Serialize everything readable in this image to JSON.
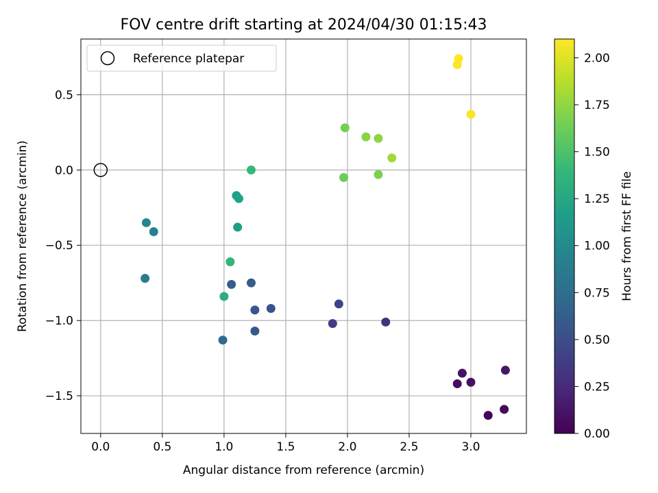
{
  "chart_data": {
    "type": "scatter",
    "title": "FOV centre drift starting at 2024/04/30 01:15:43",
    "xlabel": "Angular distance from reference (arcmin)",
    "ylabel": "Rotation from reference (arcmin)",
    "xlim": [
      -0.16,
      3.45
    ],
    "ylim": [
      -1.75,
      0.87
    ],
    "xticks": [
      0.0,
      0.5,
      1.0,
      1.5,
      2.0,
      2.5,
      3.0
    ],
    "xtick_labels": [
      "0.0",
      "0.5",
      "1.0",
      "1.5",
      "2.0",
      "2.5",
      "3.0"
    ],
    "yticks": [
      -1.5,
      -1.0,
      -0.5,
      0.0,
      0.5
    ],
    "ytick_labels": [
      "−1.5",
      "−1.0",
      "−0.5",
      "0.0",
      "0.5"
    ],
    "grid": true,
    "legend": {
      "position": "top-left",
      "entries": [
        "Reference platepar"
      ]
    },
    "reference_point": {
      "x": 0.0,
      "y": 0.0
    },
    "colorbar": {
      "label": "Hours from first FF file",
      "range": [
        0.0,
        2.1
      ],
      "ticks": [
        0.0,
        0.25,
        0.5,
        0.75,
        1.0,
        1.25,
        1.5,
        1.75,
        2.0
      ],
      "tick_labels": [
        "0.00",
        "0.25",
        "0.50",
        "0.75",
        "1.00",
        "1.25",
        "1.50",
        "1.75",
        "2.00"
      ],
      "colormap": [
        "#440154",
        "#482878",
        "#3e4989",
        "#31688e",
        "#26828e",
        "#1f9e89",
        "#35b779",
        "#6ece58",
        "#b5de2b",
        "#fde725"
      ]
    },
    "series": [
      {
        "points": [
          {
            "x": 3.14,
            "y": -1.63,
            "hours": 0.02
          },
          {
            "x": 3.27,
            "y": -1.59,
            "hours": 0.04
          },
          {
            "x": 2.89,
            "y": -1.42,
            "hours": 0.07
          },
          {
            "x": 3.0,
            "y": -1.41,
            "hours": 0.09
          },
          {
            "x": 2.93,
            "y": -1.35,
            "hours": 0.11
          },
          {
            "x": 3.28,
            "y": -1.33,
            "hours": 0.13
          },
          {
            "x": 2.31,
            "y": -1.01,
            "hours": 0.3
          },
          {
            "x": 1.88,
            "y": -1.02,
            "hours": 0.38
          },
          {
            "x": 1.93,
            "y": -0.89,
            "hours": 0.42
          },
          {
            "x": 1.38,
            "y": -0.92,
            "hours": 0.55
          },
          {
            "x": 1.25,
            "y": -0.93,
            "hours": 0.57
          },
          {
            "x": 1.25,
            "y": -1.07,
            "hours": 0.58
          },
          {
            "x": 1.22,
            "y": -0.75,
            "hours": 0.6
          },
          {
            "x": 1.06,
            "y": -0.76,
            "hours": 0.62
          },
          {
            "x": 0.99,
            "y": -1.13,
            "hours": 0.72
          },
          {
            "x": 0.36,
            "y": -0.72,
            "hours": 0.88
          },
          {
            "x": 0.43,
            "y": -0.41,
            "hours": 0.93
          },
          {
            "x": 0.37,
            "y": -0.35,
            "hours": 0.97
          },
          {
            "x": 1.11,
            "y": -0.38,
            "hours": 1.16
          },
          {
            "x": 1.1,
            "y": -0.17,
            "hours": 1.18
          },
          {
            "x": 1.12,
            "y": -0.19,
            "hours": 1.2
          },
          {
            "x": 1.0,
            "y": -0.84,
            "hours": 1.3
          },
          {
            "x": 1.05,
            "y": -0.61,
            "hours": 1.38
          },
          {
            "x": 1.22,
            "y": 0.0,
            "hours": 1.4
          },
          {
            "x": 1.97,
            "y": -0.05,
            "hours": 1.62
          },
          {
            "x": 1.98,
            "y": 0.28,
            "hours": 1.65
          },
          {
            "x": 2.25,
            "y": -0.03,
            "hours": 1.68
          },
          {
            "x": 2.15,
            "y": 0.22,
            "hours": 1.72
          },
          {
            "x": 2.25,
            "y": 0.21,
            "hours": 1.74
          },
          {
            "x": 2.36,
            "y": 0.08,
            "hours": 1.8
          },
          {
            "x": 3.0,
            "y": 0.37,
            "hours": 2.08
          },
          {
            "x": 2.89,
            "y": 0.7,
            "hours": 2.09
          },
          {
            "x": 2.9,
            "y": 0.74,
            "hours": 2.1
          }
        ]
      }
    ]
  }
}
